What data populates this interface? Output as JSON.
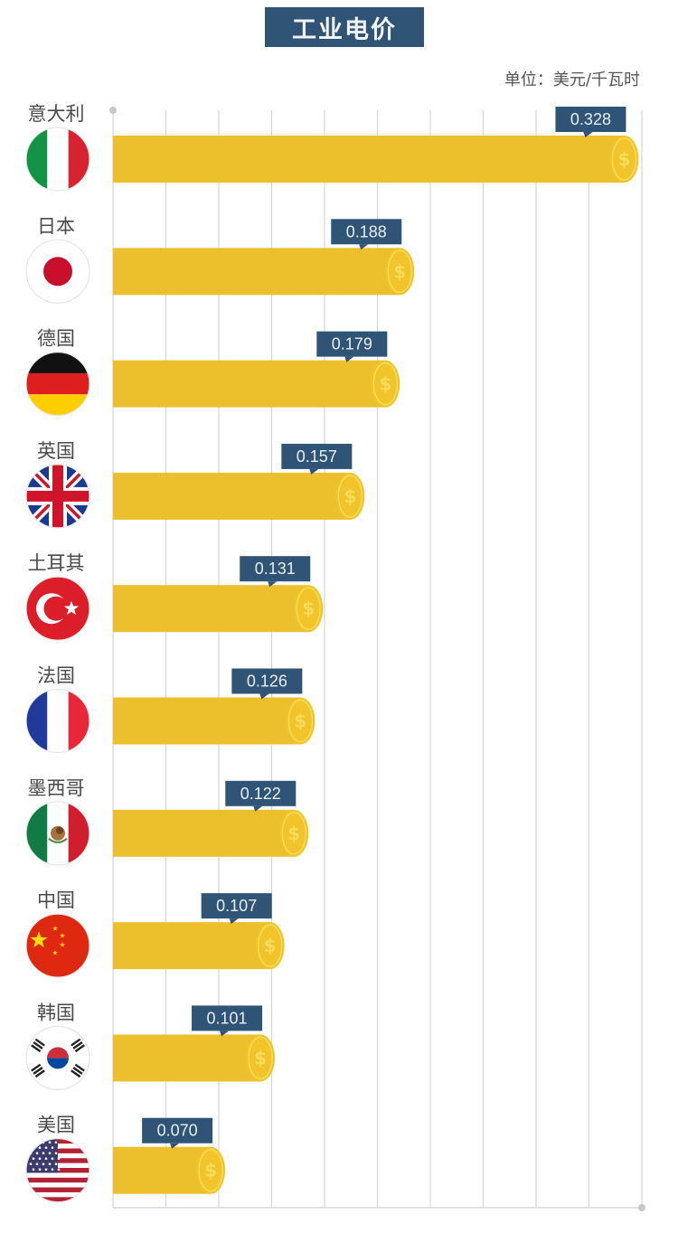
{
  "chart_data": {
    "type": "bar",
    "orientation": "horizontal",
    "title": "工业电价",
    "unit_label": "单位：美元/千瓦时",
    "xlabel": "",
    "ylabel": "",
    "xlim": [
      0,
      0.33
    ],
    "grid": true,
    "categories": [
      "意大利",
      "日本",
      "德国",
      "英国",
      "土耳其",
      "法国",
      "墨西哥",
      "中国",
      "韩国",
      "美国"
    ],
    "values": [
      0.328,
      0.188,
      0.179,
      0.157,
      0.131,
      0.126,
      0.122,
      0.107,
      0.101,
      0.07
    ],
    "value_labels": [
      "0.328",
      "0.188",
      "0.179",
      "0.157",
      "0.131",
      "0.126",
      "0.122",
      "0.107",
      "0.101",
      "0.070"
    ],
    "flags": [
      "italy-flag",
      "japan-flag",
      "germany-flag",
      "uk-flag",
      "turkey-flag",
      "france-flag",
      "mexico-flag",
      "china-flag",
      "korea-flag",
      "usa-flag"
    ],
    "bar_end_icon": "dollar-coin-icon",
    "colors": {
      "bar": "#ecc02c",
      "coin": "#f0c42a",
      "coin_rim": "#f7dc55",
      "label_box": "#2f5475",
      "title_box": "#2f5475",
      "grid": "#d6d6d6"
    }
  }
}
